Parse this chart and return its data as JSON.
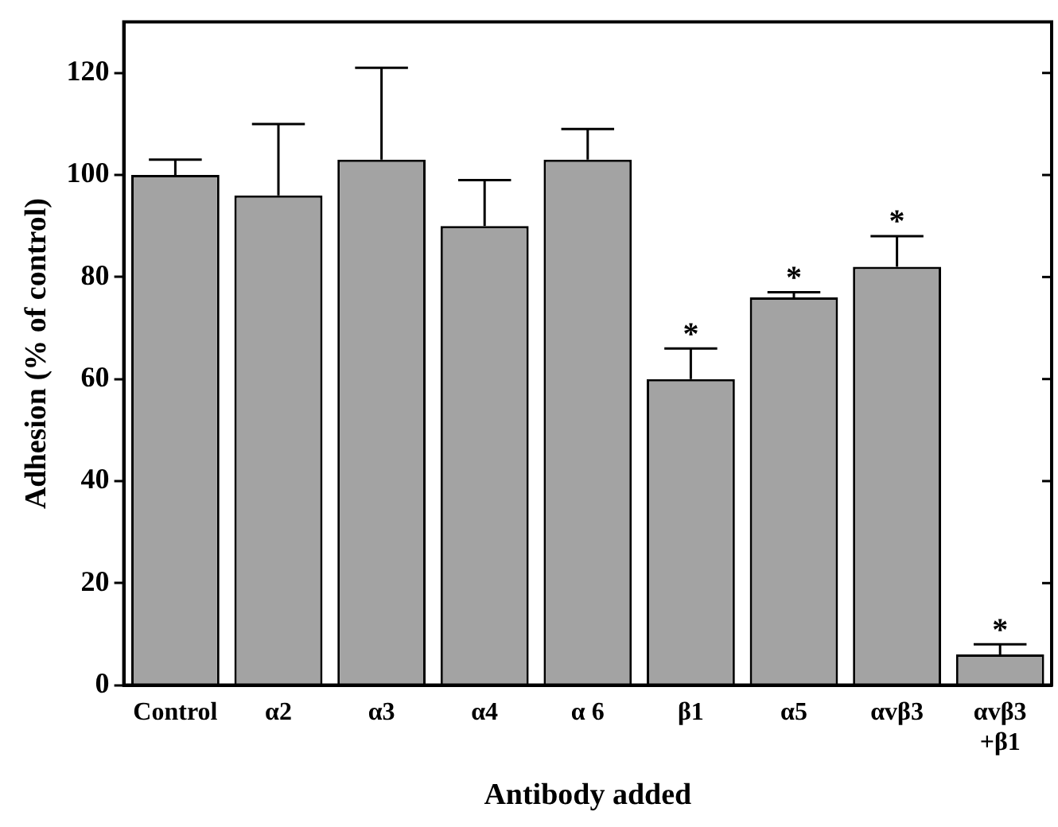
{
  "chart_data": {
    "type": "bar",
    "xlabel": "Antibody added",
    "ylabel": "Adhesion (% of control)",
    "categories": [
      "Control",
      "α2",
      "α3",
      "α4",
      "α 6",
      "β1",
      "α5",
      "αvβ3",
      "αvβ3\n+β1"
    ],
    "values": [
      100,
      96,
      103,
      90,
      103,
      60,
      76,
      82,
      6
    ],
    "errors": [
      [
        100,
        103
      ],
      [
        96,
        110
      ],
      [
        103,
        121
      ],
      [
        90,
        99
      ],
      [
        103,
        109
      ],
      [
        60,
        66
      ],
      [
        76,
        77
      ],
      [
        82,
        88
      ],
      [
        6,
        8
      ]
    ],
    "color": "#a3a3a3",
    "ylim": [
      0,
      130
    ],
    "yticks": [
      0,
      20,
      40,
      60,
      80,
      100,
      120
    ],
    "grid": false,
    "legend": false,
    "annotations": [
      {
        "text": "*",
        "x": "β1",
        "y": 66
      },
      {
        "text": "*",
        "x": "α5",
        "y": 77
      },
      {
        "text": "*",
        "x": "αvβ3",
        "y": 88
      },
      {
        "text": "*",
        "x": "αvβ3\n+β1",
        "y": 8
      }
    ]
  }
}
